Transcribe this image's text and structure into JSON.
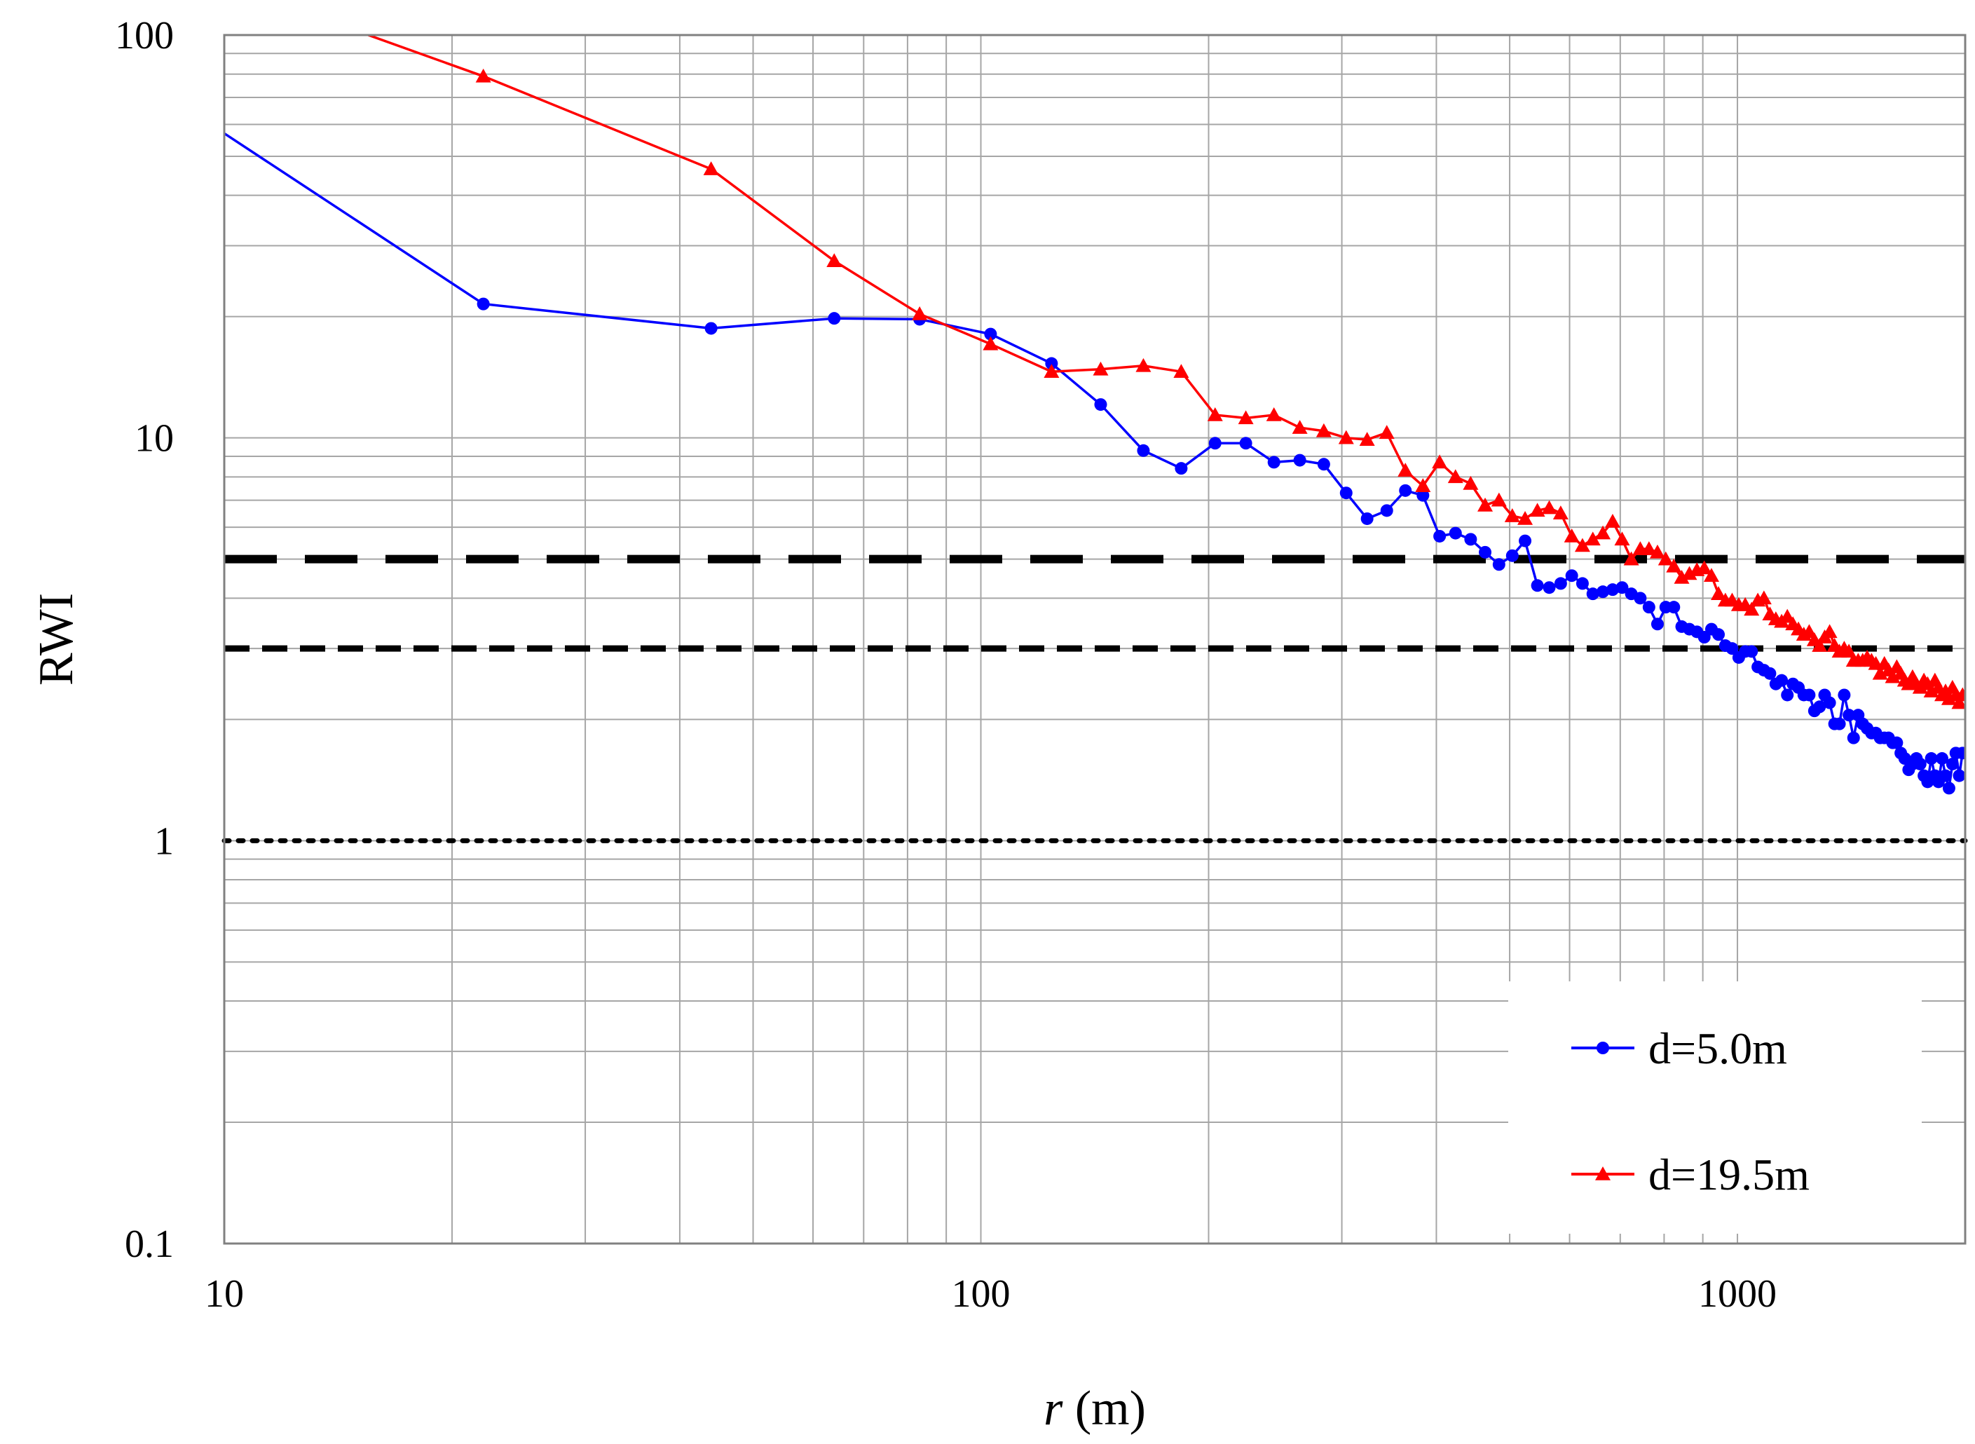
{
  "chart_data": {
    "type": "line",
    "x_scale": "log",
    "y_scale": "log",
    "xlim": [
      10,
      2000
    ],
    "ylim": [
      0.1,
      100
    ],
    "xlabel_italic": "r",
    "xlabel_rest": " (m)",
    "ylabel": "RWI",
    "x_ticks": [
      {
        "value": 10,
        "label": "10"
      },
      {
        "value": 100,
        "label": "100"
      },
      {
        "value": 1000,
        "label": "1000"
      }
    ],
    "y_ticks": [
      {
        "value": 0.1,
        "label": "0.1"
      },
      {
        "value": 1,
        "label": "1"
      },
      {
        "value": 10,
        "label": "10"
      },
      {
        "value": 100,
        "label": "100"
      }
    ],
    "grid": true,
    "legend_position": "bottom-right",
    "reference_lines": [
      {
        "y": 5,
        "style": "long-dash"
      },
      {
        "y": 3,
        "style": "short-dash"
      },
      {
        "y": 1,
        "style": "dotted"
      }
    ],
    "series": [
      {
        "name": "d=5.0m",
        "color": "#0000ff",
        "marker": "circle",
        "points": [
          [
            10,
            57
          ],
          [
            22,
            21.5
          ],
          [
            44,
            18.7
          ],
          [
            64,
            19.8
          ],
          [
            83,
            19.7
          ],
          [
            103,
            18.1
          ],
          [
            124,
            15.3
          ],
          [
            144,
            12.1
          ],
          [
            164,
            9.3
          ],
          [
            184,
            8.4
          ],
          [
            204,
            9.7
          ],
          [
            224,
            9.7
          ],
          [
            244,
            8.7
          ],
          [
            264,
            8.8
          ],
          [
            284,
            8.6
          ],
          [
            304,
            7.3
          ],
          [
            324,
            6.3
          ],
          [
            344,
            6.6
          ],
          [
            364,
            7.4
          ],
          [
            384,
            7.2
          ],
          [
            404,
            5.7
          ],
          [
            424,
            5.8
          ],
          [
            444,
            5.6
          ],
          [
            464,
            5.2
          ],
          [
            484,
            4.85
          ],
          [
            504,
            5.1
          ],
          [
            524,
            5.55
          ],
          [
            544,
            4.3
          ],
          [
            564,
            4.25
          ],
          [
            584,
            4.35
          ],
          [
            604,
            4.55
          ],
          [
            624,
            4.35
          ],
          [
            644,
            4.1
          ],
          [
            664,
            4.15
          ],
          [
            684,
            4.2
          ],
          [
            704,
            4.25
          ],
          [
            724,
            4.1
          ],
          [
            744,
            4.0
          ],
          [
            764,
            3.8
          ],
          [
            784,
            3.45
          ],
          [
            804,
            3.8
          ],
          [
            824,
            3.8
          ],
          [
            844,
            3.4
          ],
          [
            864,
            3.35
          ],
          [
            884,
            3.3
          ],
          [
            904,
            3.2
          ],
          [
            924,
            3.35
          ],
          [
            944,
            3.25
          ],
          [
            964,
            3.05
          ],
          [
            984,
            3.0
          ],
          [
            1004,
            2.85
          ],
          [
            1024,
            2.95
          ],
          [
            1044,
            2.95
          ],
          [
            1064,
            2.7
          ],
          [
            1084,
            2.65
          ],
          [
            1104,
            2.6
          ],
          [
            1124,
            2.45
          ],
          [
            1144,
            2.5
          ],
          [
            1164,
            2.3
          ],
          [
            1184,
            2.45
          ],
          [
            1204,
            2.4
          ],
          [
            1224,
            2.3
          ],
          [
            1244,
            2.3
          ],
          [
            1264,
            2.1
          ],
          [
            1284,
            2.15
          ],
          [
            1304,
            2.3
          ],
          [
            1324,
            2.2
          ],
          [
            1344,
            1.95
          ],
          [
            1364,
            1.95
          ],
          [
            1384,
            2.3
          ],
          [
            1404,
            2.05
          ],
          [
            1424,
            1.8
          ],
          [
            1444,
            2.05
          ],
          [
            1464,
            1.95
          ],
          [
            1484,
            1.9
          ],
          [
            1504,
            1.85
          ],
          [
            1524,
            1.85
          ],
          [
            1544,
            1.8
          ],
          [
            1564,
            1.8
          ],
          [
            1584,
            1.8
          ],
          [
            1604,
            1.75
          ],
          [
            1624,
            1.75
          ],
          [
            1644,
            1.65
          ],
          [
            1664,
            1.6
          ],
          [
            1684,
            1.5
          ],
          [
            1704,
            1.55
          ],
          [
            1724,
            1.6
          ],
          [
            1744,
            1.55
          ],
          [
            1764,
            1.45
          ],
          [
            1784,
            1.4
          ],
          [
            1804,
            1.6
          ],
          [
            1824,
            1.45
          ],
          [
            1844,
            1.4
          ],
          [
            1864,
            1.6
          ],
          [
            1884,
            1.45
          ],
          [
            1904,
            1.35
          ],
          [
            1924,
            1.55
          ],
          [
            1944,
            1.65
          ],
          [
            1964,
            1.45
          ],
          [
            1984,
            1.65
          ]
        ]
      },
      {
        "name": "d=19.5m",
        "color": "#ff0000",
        "marker": "triangle",
        "points": [
          [
            15.5,
            100
          ],
          [
            22,
            79
          ],
          [
            44,
            46.5
          ],
          [
            64,
            27.5
          ],
          [
            83,
            20.3
          ],
          [
            103,
            17.1
          ],
          [
            124,
            14.6
          ],
          [
            144,
            14.8
          ],
          [
            164,
            15.1
          ],
          [
            184,
            14.6
          ],
          [
            204,
            11.4
          ],
          [
            224,
            11.2
          ],
          [
            244,
            11.4
          ],
          [
            264,
            10.6
          ],
          [
            284,
            10.4
          ],
          [
            304,
            10.0
          ],
          [
            324,
            9.9
          ],
          [
            344,
            10.3
          ],
          [
            364,
            8.3
          ],
          [
            384,
            7.6
          ],
          [
            404,
            8.7
          ],
          [
            424,
            8.0
          ],
          [
            444,
            7.7
          ],
          [
            464,
            6.8
          ],
          [
            484,
            7.0
          ],
          [
            504,
            6.4
          ],
          [
            524,
            6.3
          ],
          [
            544,
            6.6
          ],
          [
            564,
            6.7
          ],
          [
            584,
            6.5
          ],
          [
            604,
            5.7
          ],
          [
            624,
            5.4
          ],
          [
            644,
            5.6
          ],
          [
            664,
            5.8
          ],
          [
            684,
            6.2
          ],
          [
            704,
            5.6
          ],
          [
            724,
            5.0
          ],
          [
            744,
            5.3
          ],
          [
            764,
            5.3
          ],
          [
            784,
            5.2
          ],
          [
            804,
            5.0
          ],
          [
            824,
            4.8
          ],
          [
            844,
            4.5
          ],
          [
            864,
            4.6
          ],
          [
            884,
            4.7
          ],
          [
            904,
            4.75
          ],
          [
            924,
            4.55
          ],
          [
            944,
            4.1
          ],
          [
            964,
            3.95
          ],
          [
            984,
            3.95
          ],
          [
            1004,
            3.85
          ],
          [
            1024,
            3.85
          ],
          [
            1044,
            3.75
          ],
          [
            1064,
            3.95
          ],
          [
            1084,
            4.0
          ],
          [
            1104,
            3.65
          ],
          [
            1124,
            3.55
          ],
          [
            1144,
            3.5
          ],
          [
            1164,
            3.6
          ],
          [
            1184,
            3.45
          ],
          [
            1204,
            3.35
          ],
          [
            1224,
            3.25
          ],
          [
            1244,
            3.3
          ],
          [
            1264,
            3.15
          ],
          [
            1284,
            3.05
          ],
          [
            1304,
            3.2
          ],
          [
            1324,
            3.3
          ],
          [
            1344,
            3.05
          ],
          [
            1364,
            2.95
          ],
          [
            1384,
            3.0
          ],
          [
            1404,
            2.95
          ],
          [
            1424,
            2.8
          ],
          [
            1444,
            2.8
          ],
          [
            1464,
            2.8
          ],
          [
            1484,
            2.85
          ],
          [
            1504,
            2.8
          ],
          [
            1524,
            2.75
          ],
          [
            1544,
            2.6
          ],
          [
            1564,
            2.75
          ],
          [
            1584,
            2.65
          ],
          [
            1604,
            2.55
          ],
          [
            1624,
            2.7
          ],
          [
            1644,
            2.6
          ],
          [
            1664,
            2.5
          ],
          [
            1684,
            2.45
          ],
          [
            1704,
            2.55
          ],
          [
            1724,
            2.45
          ],
          [
            1744,
            2.4
          ],
          [
            1764,
            2.5
          ],
          [
            1784,
            2.45
          ],
          [
            1804,
            2.35
          ],
          [
            1824,
            2.5
          ],
          [
            1844,
            2.4
          ],
          [
            1864,
            2.3
          ],
          [
            1884,
            2.35
          ],
          [
            1904,
            2.25
          ],
          [
            1924,
            2.4
          ],
          [
            1944,
            2.3
          ],
          [
            1964,
            2.2
          ],
          [
            1984,
            2.3
          ]
        ]
      }
    ]
  }
}
